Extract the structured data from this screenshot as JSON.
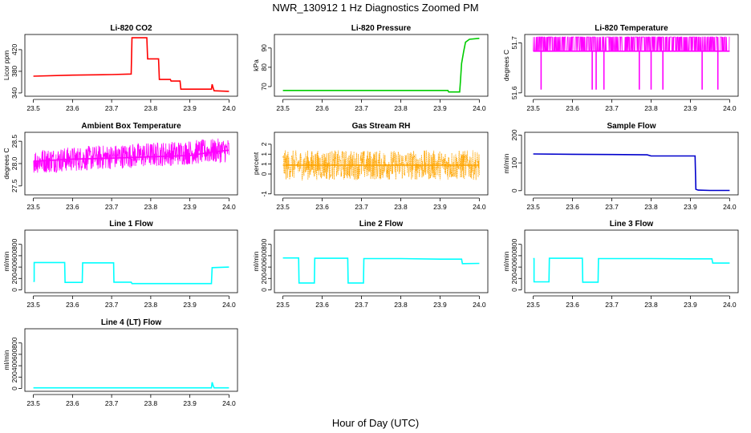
{
  "figure": {
    "title": "NWR_130912  1 Hz Diagnostics Zoomed PM",
    "xlabel": "Hour of Day (UTC)"
  },
  "chart_data": [
    {
      "id": "co2",
      "type": "line",
      "title": "Li-820 CO2",
      "ylabel": "Licor ppm",
      "color": "#ff0000",
      "xlim": [
        23.5,
        24.0
      ],
      "ylim": [
        334,
        448
      ],
      "xticks": [
        23.5,
        23.6,
        23.7,
        23.8,
        23.9,
        24.0
      ],
      "yticks": [
        340,
        380,
        420
      ],
      "series": [
        {
          "x": [
            23.5,
            23.6,
            23.7,
            23.75,
            23.752,
            23.79,
            23.792,
            23.82,
            23.822,
            23.85,
            23.852,
            23.875,
            23.877,
            23.955,
            23.957,
            23.96,
            23.962,
            24.0
          ],
          "y": [
            371,
            373,
            374,
            375,
            442,
            442,
            403,
            403,
            365,
            365,
            362,
            362,
            347,
            347,
            356,
            348,
            344,
            343
          ]
        }
      ]
    },
    {
      "id": "pressure",
      "type": "line",
      "title": "Li-820 Pressure",
      "ylabel": "kPa",
      "color": "#00cc00",
      "xlim": [
        23.5,
        24.0
      ],
      "ylim": [
        65,
        97
      ],
      "xticks": [
        23.5,
        23.6,
        23.7,
        23.8,
        23.9,
        24.0
      ],
      "yticks": [
        70,
        80,
        90
      ],
      "series": [
        {
          "x": [
            23.5,
            23.6,
            23.7,
            23.8,
            23.9,
            23.92,
            23.922,
            23.95,
            23.952,
            23.955,
            23.96,
            23.965,
            23.975,
            24.0
          ],
          "y": [
            68,
            68,
            68,
            68,
            68,
            68,
            67.2,
            67.2,
            73,
            82,
            88,
            93,
            94.5,
            95
          ]
        }
      ]
    },
    {
      "id": "li820temp",
      "type": "line",
      "title": "Li-820 Temperature",
      "ylabel": "degrees C",
      "color": "#ff00ff",
      "xlim": [
        23.5,
        24.0
      ],
      "ylim": [
        51.648,
        51.685
      ],
      "xticks": [
        23.5,
        23.6,
        23.7,
        23.8,
        23.9,
        24.0
      ],
      "yticks": [
        51.65,
        51.68
      ],
      "series": [
        {
          "x": [
            23.5,
            23.52,
            23.52,
            23.52,
            23.65,
            23.65,
            23.65,
            23.66,
            23.66,
            23.66,
            23.68,
            23.68,
            23.68,
            23.77,
            23.77,
            23.77,
            23.8,
            23.8,
            23.8,
            23.83,
            23.83,
            23.83,
            23.93,
            23.93,
            23.93,
            23.97,
            23.97,
            23.97,
            24.0
          ],
          "y": [
            51.675,
            51.675,
            51.652,
            51.675,
            51.675,
            51.652,
            51.675,
            51.675,
            51.652,
            51.675,
            51.675,
            51.652,
            51.675,
            51.675,
            51.652,
            51.675,
            51.675,
            51.652,
            51.675,
            51.675,
            51.652,
            51.675,
            51.675,
            51.652,
            51.675,
            51.675,
            51.652,
            51.675,
            51.675
          ]
        }
      ]
    },
    {
      "id": "boxtemp",
      "type": "line",
      "title": "Ambient Box Temperature",
      "ylabel": "degrees C",
      "color": "#ff00ff",
      "xlim": [
        23.5,
        24.0
      ],
      "ylim": [
        27.3,
        28.7
      ],
      "xticks": [
        23.5,
        23.6,
        23.7,
        23.8,
        23.9,
        24.0
      ],
      "yticks": [
        27.5,
        28.0,
        28.5
      ],
      "series": [
        {
          "x": [
            23.5,
            23.6,
            23.7,
            23.8,
            23.9,
            23.95,
            24.0
          ],
          "y": [
            28.05,
            28.1,
            28.12,
            28.15,
            28.18,
            28.25,
            28.3
          ]
        }
      ]
    },
    {
      "id": "rh",
      "type": "line",
      "title": "Gas Stream RH",
      "ylabel": "percent",
      "color": "#ffa500",
      "xlim": [
        23.5,
        24.0
      ],
      "ylim": [
        -1.05,
        2.1
      ],
      "xticks": [
        23.5,
        23.6,
        23.7,
        23.8,
        23.9,
        24.0
      ],
      "yticks": [
        -1.0,
        0.0,
        0.5,
        1.0,
        1.5
      ],
      "series": [
        {
          "x": [
            23.5,
            23.6,
            23.7,
            23.8,
            23.9,
            24.0
          ],
          "y": [
            0.45,
            0.45,
            0.45,
            0.45,
            0.45,
            0.45
          ]
        }
      ]
    },
    {
      "id": "sampleflow",
      "type": "line",
      "title": "Sample Flow",
      "ylabel": "ml/min",
      "color": "#0000cc",
      "xlim": [
        23.5,
        24.0
      ],
      "ylim": [
        -15,
        210
      ],
      "xticks": [
        23.5,
        23.6,
        23.7,
        23.8,
        23.9,
        24.0
      ],
      "yticks": [
        0,
        100,
        200
      ],
      "series": [
        {
          "x": [
            23.5,
            23.6,
            23.7,
            23.79,
            23.8,
            23.9,
            23.912,
            23.914,
            23.92,
            23.95,
            24.0
          ],
          "y": [
            132,
            131,
            130,
            129,
            125,
            125,
            125,
            5,
            2,
            1,
            1
          ]
        }
      ]
    },
    {
      "id": "line1",
      "type": "line",
      "title": "Line 1 Flow",
      "ylabel": "ml/min",
      "color": "#00ffff",
      "xlim": [
        23.5,
        24.0
      ],
      "ylim": [
        -50,
        1050
      ],
      "xticks": [
        23.5,
        23.6,
        23.7,
        23.8,
        23.9,
        24.0
      ],
      "yticks": [
        0,
        200,
        400,
        600,
        800
      ],
      "series": [
        {
          "x": [
            23.5,
            23.502,
            23.502,
            23.58,
            23.581,
            23.625,
            23.626,
            23.705,
            23.706,
            23.75,
            23.752,
            23.955,
            23.957,
            24.0
          ],
          "y": [
            150,
            150,
            480,
            480,
            130,
            130,
            475,
            475,
            135,
            135,
            110,
            110,
            390,
            400
          ]
        }
      ]
    },
    {
      "id": "line2",
      "type": "line",
      "title": "Line 2 Flow",
      "ylabel": "ml/min",
      "color": "#00ffff",
      "xlim": [
        23.5,
        24.0
      ],
      "ylim": [
        -50,
        1050
      ],
      "xticks": [
        23.5,
        23.6,
        23.7,
        23.8,
        23.9,
        24.0
      ],
      "yticks": [
        0,
        200,
        400,
        600,
        800
      ],
      "series": [
        {
          "x": [
            23.5,
            23.54,
            23.541,
            23.58,
            23.581,
            23.665,
            23.666,
            23.705,
            23.706,
            23.8,
            23.9,
            23.955,
            23.957,
            24.0
          ],
          "y": [
            560,
            560,
            120,
            120,
            555,
            555,
            120,
            120,
            550,
            550,
            540,
            540,
            460,
            465
          ]
        }
      ]
    },
    {
      "id": "line3",
      "type": "line",
      "title": "Line 3 Flow",
      "ylabel": "ml/min",
      "color": "#00ffff",
      "xlim": [
        23.5,
        24.0
      ],
      "ylim": [
        -50,
        1050
      ],
      "xticks": [
        23.5,
        23.6,
        23.7,
        23.8,
        23.9,
        24.0
      ],
      "yticks": [
        0,
        200,
        400,
        600,
        800
      ],
      "series": [
        {
          "x": [
            23.5,
            23.502,
            23.502,
            23.54,
            23.541,
            23.625,
            23.626,
            23.665,
            23.666,
            23.8,
            23.9,
            23.955,
            23.957,
            24.0
          ],
          "y": [
            550,
            550,
            140,
            140,
            555,
            555,
            135,
            135,
            550,
            550,
            545,
            545,
            470,
            470
          ]
        }
      ]
    },
    {
      "id": "line4",
      "type": "line",
      "title": "Line 4 (LT) Flow",
      "ylabel": "ml/min",
      "color": "#00ffff",
      "xlim": [
        23.5,
        24.0
      ],
      "ylim": [
        -50,
        1050
      ],
      "xticks": [
        23.5,
        23.6,
        23.7,
        23.8,
        23.9,
        24.0
      ],
      "yticks": [
        0,
        200,
        400,
        600,
        800
      ],
      "series": [
        {
          "x": [
            23.5,
            23.7,
            23.955,
            23.957,
            23.96,
            23.962,
            24.0
          ],
          "y": [
            10,
            10,
            10,
            110,
            40,
            10,
            10
          ]
        }
      ]
    }
  ]
}
